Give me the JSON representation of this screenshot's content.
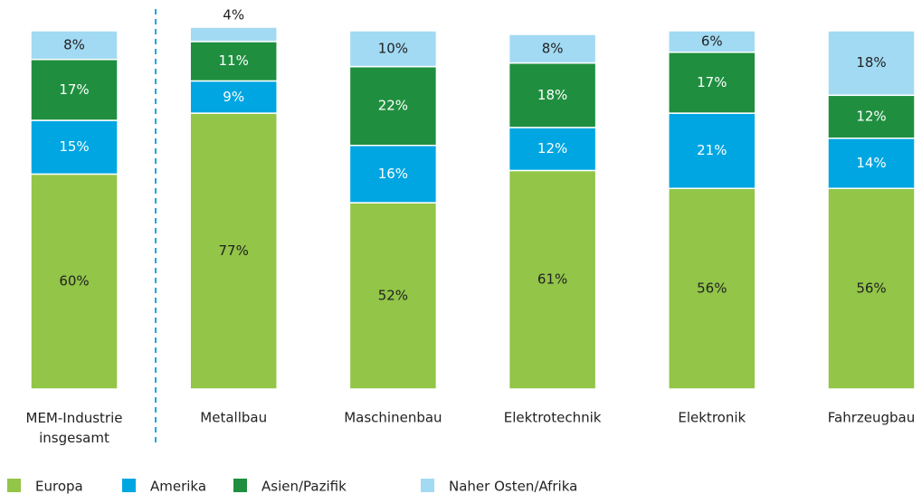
{
  "chart_data": {
    "type": "stacked_bar",
    "categories": [
      "MEM-Industrie insgesamt",
      "Metallbau",
      "Maschinenbau",
      "Elektrotechnik",
      "Elektronik",
      "Fahrzeugbau"
    ],
    "ylim": [
      0,
      100
    ],
    "series": [
      {
        "name": "Europa",
        "color": "#92c548",
        "values": [
          60,
          77,
          52,
          61,
          56,
          56
        ],
        "value_labels": [
          "60%",
          "77%",
          "52%",
          "61%",
          "56%",
          "56%"
        ]
      },
      {
        "name": "Amerika",
        "color": "#00a6e2",
        "values": [
          15,
          9,
          16,
          12,
          21,
          14
        ],
        "value_labels": [
          "15%",
          "9%",
          "16%",
          "12%",
          "21%",
          "14%"
        ]
      },
      {
        "name": "Asien/Pazifik",
        "color": "#1f8f3f",
        "values": [
          17,
          11,
          22,
          18,
          17,
          12
        ],
        "value_labels": [
          "17%",
          "11%",
          "22%",
          "18%",
          "17%",
          "12%"
        ]
      },
      {
        "name": "Naher Osten/Afrika",
        "color": "#a2daf3",
        "values": [
          8,
          4,
          10,
          8,
          6,
          18
        ],
        "value_labels": [
          "8%",
          "4%",
          "10%",
          "8%",
          "6%",
          "18%"
        ]
      }
    ]
  }
}
